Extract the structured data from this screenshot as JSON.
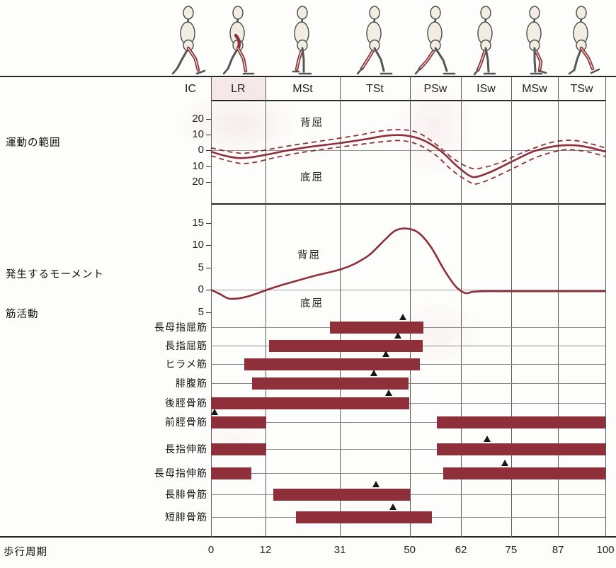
{
  "section_labels": {
    "rom": "運動の範囲",
    "moment": "発生するモーメント",
    "muscle_activity": "筋活動",
    "gait_cycle": "歩行周期"
  },
  "phases": [
    "IC",
    "LR",
    "MSt",
    "TSt",
    "PSw",
    "ISw",
    "MSw",
    "TSw"
  ],
  "x_axis": {
    "tick_labels": [
      "0",
      "12",
      "31",
      "50",
      "62",
      "75",
      "87",
      "100"
    ],
    "tick_values": [
      0,
      12,
      31,
      50,
      62,
      75,
      87,
      100
    ]
  },
  "colors": {
    "curve": "#8e2f3a",
    "bar": "#8e2f3a",
    "triangle": "#161616",
    "grid": "#5c5c5c",
    "frame": "#262626",
    "lr_cell_tint": "#efd4da"
  },
  "chart_data": [
    {
      "type": "line",
      "title": "運動の範囲",
      "ylabel_ticks": [
        "20",
        "10",
        "0",
        "10",
        "20"
      ],
      "ytick_values": [
        20,
        10,
        0,
        -10,
        -20
      ],
      "region_labels": {
        "upper": "背屈",
        "lower": "底屈"
      },
      "x_unit": "歩行周期 %",
      "series": [
        {
          "name": "mean",
          "style": "solid",
          "points": [
            [
              0,
              -1
            ],
            [
              3,
              -3.5
            ],
            [
              6,
              -5
            ],
            [
              9,
              -4.5
            ],
            [
              13,
              -2.5
            ],
            [
              17,
              -0.5
            ],
            [
              23,
              2
            ],
            [
              31,
              4.5
            ],
            [
              38,
              7
            ],
            [
              44,
              9.3
            ],
            [
              49,
              9.3
            ],
            [
              53,
              6.5
            ],
            [
              57,
              0
            ],
            [
              61,
              -10
            ],
            [
              64,
              -16
            ],
            [
              66,
              -17
            ],
            [
              70,
              -13.5
            ],
            [
              75,
              -7.5
            ],
            [
              80,
              -1.5
            ],
            [
              84,
              1.5
            ],
            [
              88,
              3
            ],
            [
              92,
              3
            ],
            [
              96,
              1.5
            ],
            [
              100,
              -1
            ]
          ]
        },
        {
          "name": "upper-band",
          "style": "dashed",
          "points": [
            [
              0,
              1.5
            ],
            [
              4,
              -1
            ],
            [
              7,
              -2
            ],
            [
              10,
              -1
            ],
            [
              14,
              1
            ],
            [
              20,
              3.5
            ],
            [
              28,
              6.5
            ],
            [
              36,
              9.5
            ],
            [
              43,
              12.5
            ],
            [
              48,
              13
            ],
            [
              52,
              11
            ],
            [
              56,
              4
            ],
            [
              60,
              -5
            ],
            [
              64,
              -11
            ],
            [
              67,
              -11.5
            ],
            [
              72,
              -8
            ],
            [
              78,
              -1.5
            ],
            [
              84,
              4
            ],
            [
              88,
              6
            ],
            [
              92,
              6
            ],
            [
              96,
              4
            ],
            [
              100,
              1.5
            ]
          ]
        },
        {
          "name": "lower-band",
          "style": "dashed",
          "points": [
            [
              0,
              -3.5
            ],
            [
              4,
              -7
            ],
            [
              7,
              -8.5
            ],
            [
              10,
              -7.5
            ],
            [
              14,
              -5
            ],
            [
              20,
              -2
            ],
            [
              28,
              1
            ],
            [
              36,
              3.5
            ],
            [
              43,
              5.5
            ],
            [
              48,
              6
            ],
            [
              52,
              3.5
            ],
            [
              56,
              -3
            ],
            [
              60,
              -13
            ],
            [
              64,
              -20
            ],
            [
              66,
              -21.5
            ],
            [
              70,
              -18
            ],
            [
              76,
              -11
            ],
            [
              82,
              -4
            ],
            [
              88,
              0
            ],
            [
              92,
              0
            ],
            [
              96,
              -1.5
            ],
            [
              100,
              -4
            ]
          ]
        }
      ]
    },
    {
      "type": "line",
      "title": "発生するモーメント",
      "ylabel_ticks": [
        "15",
        "10",
        "5",
        "0",
        "5"
      ],
      "ytick_values": [
        15,
        10,
        5,
        0,
        -5
      ],
      "region_labels": {
        "upper": "背屈",
        "lower": "底屈"
      },
      "x_unit": "歩行周期 %",
      "series": [
        {
          "name": "moment",
          "style": "solid",
          "points": [
            [
              0,
              0
            ],
            [
              2,
              -1
            ],
            [
              4,
              -2
            ],
            [
              7,
              -1.8
            ],
            [
              10,
              -0.9
            ],
            [
              12.5,
              0
            ],
            [
              16,
              1
            ],
            [
              20,
              2
            ],
            [
              25,
              3.2
            ],
            [
              31,
              4.5
            ],
            [
              35,
              5.8
            ],
            [
              39,
              7.8
            ],
            [
              43,
              11
            ],
            [
              46,
              13.2
            ],
            [
              49,
              13.7
            ],
            [
              52,
              12.8
            ],
            [
              55,
              9.5
            ],
            [
              58,
              4.5
            ],
            [
              60.5,
              1
            ],
            [
              62,
              -0.3
            ],
            [
              63.5,
              -0.8
            ],
            [
              65,
              -0.5
            ],
            [
              68,
              -0.35
            ],
            [
              75,
              -0.35
            ],
            [
              85,
              -0.35
            ],
            [
              100,
              -0.35
            ]
          ]
        }
      ]
    },
    {
      "type": "bar",
      "title": "筋活動",
      "x_unit": "歩行周期 %",
      "rows": [
        {
          "label": "長母指屈筋",
          "bars": [
            [
              28.4,
              53.2
            ]
          ],
          "peak": 48.3
        },
        {
          "label": "長指屈筋",
          "bars": [
            [
              12.9,
              53.0
            ]
          ],
          "peak": 46.8
        },
        {
          "label": "ヒラメ筋",
          "bars": [
            [
              7.3,
              52.4
            ]
          ],
          "peak": 43.5
        },
        {
          "label": "腓腹筋",
          "bars": [
            [
              9.0,
              49.7
            ]
          ],
          "peak": 40.4
        },
        {
          "label": "後脛骨筋",
          "bars": [
            [
              0,
              49.9
            ]
          ],
          "peak": 44.3
        },
        {
          "label": "前脛骨筋",
          "bars": [
            [
              0,
              12.2
            ],
            [
              56.4,
              100
            ]
          ],
          "peak": 0.8
        },
        {
          "label": "長指伸筋",
          "bars": [
            [
              0,
              12.2
            ],
            [
              56.4,
              100
            ]
          ],
          "peak": 68.8
        },
        {
          "label": "長母指伸筋",
          "bars": [
            [
              0,
              8.9
            ],
            [
              57.8,
              100
            ]
          ],
          "peak": 73.4
        },
        {
          "label": "長腓骨筋",
          "bars": [
            [
              14.0,
              50.0
            ]
          ],
          "peak": 40.9
        },
        {
          "label": "短腓骨筋",
          "bars": [
            [
              19.7,
              55.2
            ]
          ],
          "peak": 45.6
        }
      ]
    }
  ]
}
